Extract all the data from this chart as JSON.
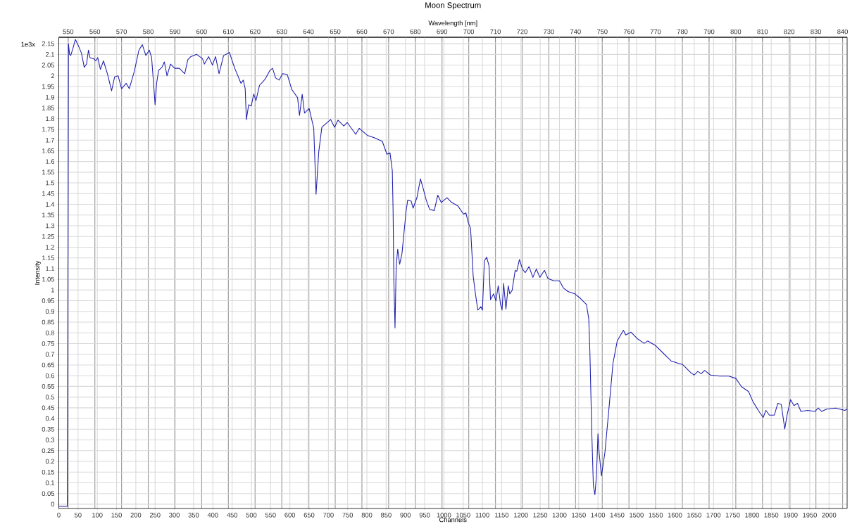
{
  "chart_data": {
    "type": "line",
    "title": "Moon Spectrum",
    "xlabel": "Channels",
    "ylabel": "Intensity",
    "x2label": "Wavelength [nm]",
    "annotations": [
      "1e3x"
    ],
    "xlim": [
      0,
      2047
    ],
    "ylim": [
      -0.02,
      2.18
    ],
    "xticks": [
      0,
      50,
      100,
      150,
      200,
      250,
      300,
      350,
      400,
      450,
      500,
      550,
      600,
      650,
      700,
      750,
      800,
      850,
      900,
      950,
      1000,
      1050,
      1100,
      1150,
      1200,
      1250,
      1300,
      1350,
      1400,
      1450,
      1500,
      1550,
      1600,
      1650,
      1700,
      1750,
      1800,
      1850,
      1900,
      1950,
      2000
    ],
    "yticks": [
      0,
      0.05,
      0.1,
      0.15,
      0.2,
      0.25,
      0.3,
      0.35,
      0.4,
      0.45,
      0.5,
      0.55,
      0.6,
      0.65,
      0.7,
      0.75,
      0.8,
      0.85,
      0.9,
      0.95,
      1,
      1.05,
      1.1,
      1.15,
      1.2,
      1.25,
      1.3,
      1.35,
      1.4,
      1.45,
      1.5,
      1.55,
      1.6,
      1.65,
      1.7,
      1.75,
      1.8,
      1.85,
      1.9,
      1.95,
      2,
      2.05,
      2.1,
      2.15
    ],
    "x2lim": [
      546.5,
      841.7
    ],
    "x2ticks": [
      550,
      560,
      570,
      580,
      590,
      600,
      610,
      620,
      630,
      640,
      650,
      660,
      670,
      680,
      690,
      700,
      710,
      720,
      730,
      740,
      750,
      760,
      770,
      780,
      790,
      800,
      810,
      820,
      830,
      840
    ],
    "grid": true,
    "series": [
      {
        "color": "#1f1fae",
        "x": [
          0,
          22,
          24,
          25,
          28,
          31,
          37,
          43,
          51,
          59,
          66,
          72,
          77,
          81,
          90,
          96,
          101,
          108,
          116,
          127,
          137,
          145,
          154,
          163,
          175,
          183,
          196,
          208,
          217,
          226,
          235,
          241,
          247,
          250,
          254,
          259,
          268,
          274,
          281,
          290,
          301,
          313,
          327,
          335,
          343,
          358,
          373,
          378,
          389,
          399,
          407,
          416,
          428,
          440,
          443,
          452,
          458,
          473,
          479,
          484,
          487,
          493,
          500,
          506,
          512,
          521,
          536,
          548,
          555,
          563,
          572,
          581,
          593,
          605,
          620,
          625,
          632,
          638,
          650,
          662,
          668,
          675,
          683,
          706,
          716,
          725,
          740,
          749,
          771,
          780,
          801,
          819,
          840,
          852,
          860,
          866,
          868,
          870,
          873,
          876,
          880,
          885,
          891,
          902,
          906,
          915,
          920,
          930,
          939,
          946,
          954,
          963,
          975,
          984,
          993,
          1008,
          1020,
          1036,
          1051,
          1057,
          1063,
          1069,
          1070,
          1076,
          1081,
          1088,
          1096,
          1100,
          1105,
          1111,
          1117,
          1121,
          1129,
          1135,
          1141,
          1147,
          1151,
          1155,
          1161,
          1167,
          1171,
          1177,
          1185,
          1189,
          1196,
          1204,
          1211,
          1221,
          1231,
          1240,
          1249,
          1261,
          1270,
          1285,
          1300,
          1310,
          1322,
          1340,
          1355,
          1370,
          1376,
          1379,
          1384,
          1388,
          1392,
          1396,
          1400,
          1403,
          1409,
          1418,
          1427,
          1439,
          1450,
          1466,
          1472,
          1486,
          1502,
          1520,
          1529,
          1550,
          1565,
          1590,
          1608,
          1620,
          1641,
          1650,
          1659,
          1668,
          1677,
          1692,
          1716,
          1740,
          1758,
          1773,
          1791,
          1803,
          1818,
          1829,
          1836,
          1845,
          1858,
          1867,
          1876,
          1885,
          1891,
          1900,
          1909,
          1918,
          1927,
          1945,
          1963,
          1972,
          1981,
          1993,
          2017,
          2041,
          2047
        ],
        "values": [
          -0.01,
          -0.01,
          1.3,
          2.15,
          2.1,
          2.095,
          2.13,
          2.17,
          2.14,
          2.105,
          2.04,
          2.055,
          2.12,
          2.085,
          2.08,
          2.07,
          2.085,
          2.03,
          2.07,
          2.005,
          1.93,
          1.995,
          2.0,
          1.94,
          1.965,
          1.94,
          2.02,
          2.12,
          2.145,
          2.095,
          2.12,
          2.085,
          1.94,
          1.865,
          1.965,
          2.025,
          2.04,
          2.065,
          2.0,
          2.055,
          2.035,
          2.035,
          2.01,
          2.075,
          2.09,
          2.1,
          2.08,
          2.055,
          2.09,
          2.05,
          2.09,
          2.01,
          2.095,
          2.105,
          2.11,
          2.06,
          2.03,
          1.965,
          1.98,
          1.94,
          1.795,
          1.865,
          1.86,
          1.915,
          1.885,
          1.955,
          1.985,
          2.025,
          2.035,
          1.99,
          1.98,
          2.01,
          2.007,
          1.936,
          1.898,
          1.815,
          1.914,
          1.826,
          1.848,
          1.755,
          1.447,
          1.645,
          1.76,
          1.796,
          1.76,
          1.793,
          1.766,
          1.782,
          1.727,
          1.755,
          1.722,
          1.711,
          1.694,
          1.634,
          1.64,
          1.557,
          1.372,
          1.043,
          0.823,
          1.109,
          1.191,
          1.12,
          1.169,
          1.372,
          1.42,
          1.415,
          1.382,
          1.432,
          1.519,
          1.475,
          1.42,
          1.376,
          1.371,
          1.443,
          1.409,
          1.431,
          1.409,
          1.393,
          1.354,
          1.36,
          1.316,
          1.288,
          1.262,
          1.065,
          0.993,
          0.906,
          0.922,
          0.906,
          1.136,
          1.153,
          1.114,
          0.955,
          0.982,
          0.949,
          1.02,
          0.933,
          0.906,
          1.031,
          0.911,
          1.02,
          0.982,
          0.998,
          1.092,
          1.087,
          1.142,
          1.098,
          1.081,
          1.109,
          1.059,
          1.098,
          1.059,
          1.092,
          1.054,
          1.043,
          1.043,
          1.01,
          0.993,
          0.982,
          0.96,
          0.933,
          0.867,
          0.713,
          0.329,
          0.088,
          0.044,
          0.132,
          0.329,
          0.241,
          0.132,
          0.241,
          0.417,
          0.658,
          0.762,
          0.812,
          0.79,
          0.803,
          0.773,
          0.751,
          0.762,
          0.74,
          0.713,
          0.669,
          0.658,
          0.652,
          0.614,
          0.603,
          0.62,
          0.609,
          0.625,
          0.603,
          0.598,
          0.598,
          0.587,
          0.548,
          0.526,
          0.477,
          0.433,
          0.405,
          0.438,
          0.416,
          0.416,
          0.471,
          0.466,
          0.351,
          0.416,
          0.488,
          0.46,
          0.471,
          0.433,
          0.438,
          0.433,
          0.449,
          0.433,
          0.444,
          0.449,
          0.438,
          0.444
        ]
      }
    ]
  }
}
